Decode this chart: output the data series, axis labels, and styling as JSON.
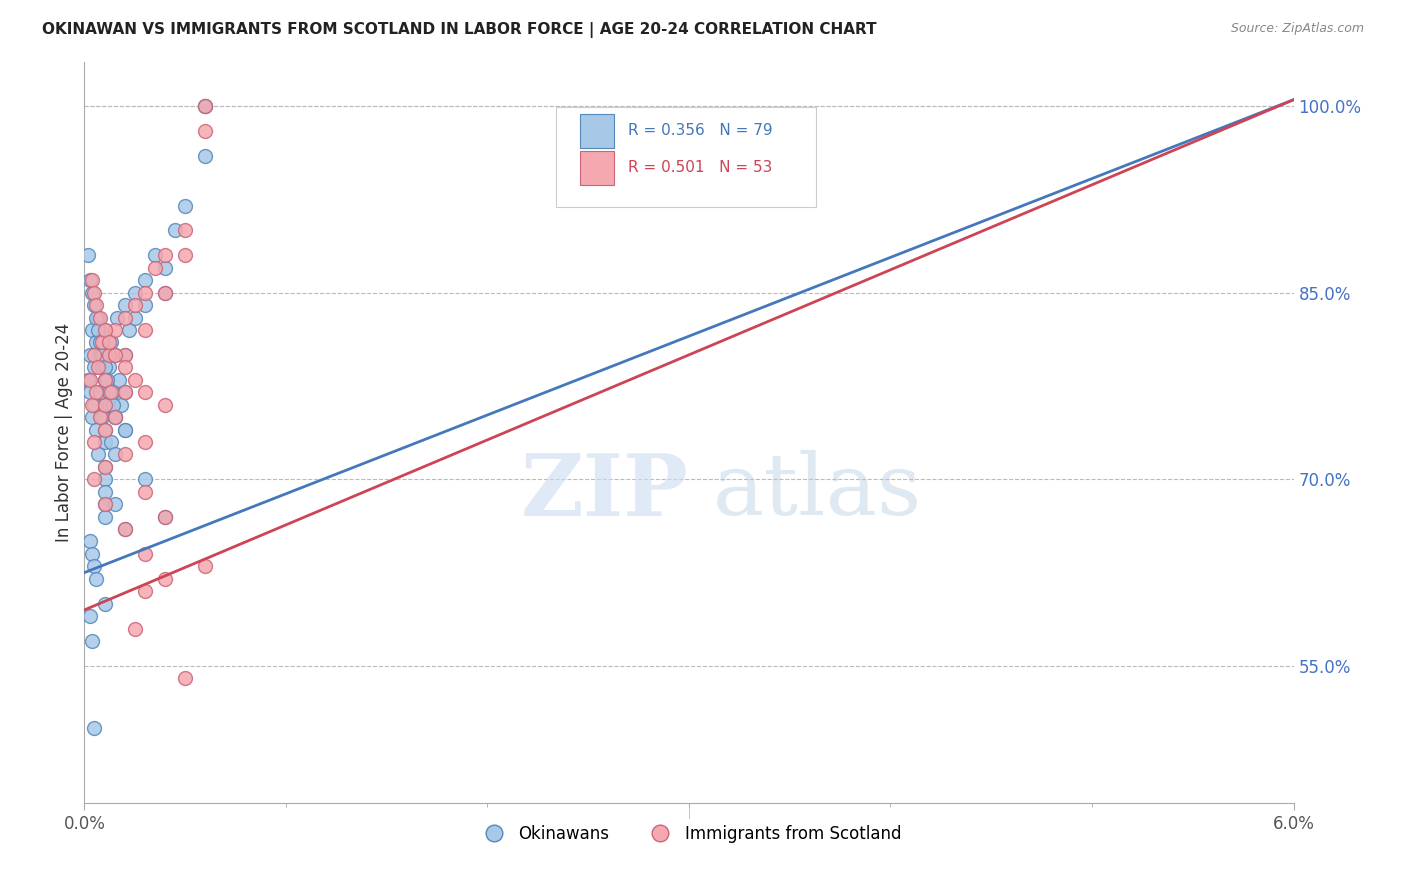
{
  "title": "OKINAWAN VS IMMIGRANTS FROM SCOTLAND IN LABOR FORCE | AGE 20-24 CORRELATION CHART",
  "source": "Source: ZipAtlas.com",
  "ylabel": "In Labor Force | Age 20-24",
  "x_min": 0.0,
  "x_max": 0.06,
  "y_min": 0.44,
  "y_max": 1.035,
  "yticks": [
    0.55,
    0.7,
    0.85,
    1.0
  ],
  "ytick_labels": [
    "55.0%",
    "70.0%",
    "85.0%",
    "100.0%"
  ],
  "xtick_vals": [
    0.0,
    0.06
  ],
  "xtick_labels": [
    "0.0%",
    "6.0%"
  ],
  "blue_R": 0.356,
  "blue_N": 79,
  "pink_R": 0.501,
  "pink_N": 53,
  "blue_color": "#a8c8e8",
  "pink_color": "#f4a8b0",
  "blue_edge_color": "#5588bb",
  "pink_edge_color": "#cc6677",
  "blue_line_color": "#4477bb",
  "pink_line_color": "#cc4455",
  "legend_blue_label": "Okinawans",
  "legend_pink_label": "Immigrants from Scotland",
  "blue_line_x0": 0.0,
  "blue_line_y0": 0.625,
  "blue_line_x1": 0.06,
  "blue_line_y1": 1.005,
  "pink_line_x0": 0.0,
  "pink_line_y0": 0.595,
  "pink_line_x1": 0.06,
  "pink_line_y1": 1.005,
  "blue_x": [
    0.0002,
    0.0003,
    0.0003,
    0.0004,
    0.0004,
    0.0005,
    0.0005,
    0.0006,
    0.0006,
    0.0007,
    0.0007,
    0.0008,
    0.0008,
    0.0009,
    0.0009,
    0.001,
    0.001,
    0.001,
    0.001,
    0.001,
    0.001,
    0.001,
    0.001,
    0.0012,
    0.0012,
    0.0013,
    0.0013,
    0.0014,
    0.0015,
    0.0015,
    0.0015,
    0.0016,
    0.0017,
    0.0018,
    0.002,
    0.002,
    0.002,
    0.002,
    0.0022,
    0.0025,
    0.0025,
    0.003,
    0.003,
    0.0035,
    0.004,
    0.004,
    0.0045,
    0.005,
    0.006,
    0.0002,
    0.0003,
    0.0004,
    0.0005,
    0.0006,
    0.0007,
    0.0008,
    0.0009,
    0.001,
    0.0011,
    0.0012,
    0.0014,
    0.0015,
    0.002,
    0.0003,
    0.0004,
    0.0005,
    0.0006,
    0.001,
    0.0015,
    0.0003,
    0.0004,
    0.0005,
    0.001,
    0.001,
    0.002,
    0.003,
    0.004,
    0.006,
    0.006
  ],
  "blue_y": [
    0.78,
    0.8,
    0.77,
    0.82,
    0.75,
    0.79,
    0.76,
    0.81,
    0.74,
    0.83,
    0.72,
    0.8,
    0.77,
    0.79,
    0.75,
    0.82,
    0.78,
    0.76,
    0.74,
    0.73,
    0.71,
    0.7,
    0.68,
    0.79,
    0.76,
    0.81,
    0.73,
    0.77,
    0.8,
    0.75,
    0.72,
    0.83,
    0.78,
    0.76,
    0.84,
    0.8,
    0.77,
    0.74,
    0.82,
    0.85,
    0.83,
    0.86,
    0.84,
    0.88,
    0.87,
    0.85,
    0.9,
    0.92,
    0.96,
    0.88,
    0.86,
    0.85,
    0.84,
    0.83,
    0.82,
    0.81,
    0.8,
    0.79,
    0.78,
    0.77,
    0.76,
    0.75,
    0.74,
    0.65,
    0.64,
    0.63,
    0.62,
    0.67,
    0.68,
    0.59,
    0.57,
    0.5,
    0.69,
    0.6,
    0.66,
    0.7,
    0.67,
    1.0,
    1.0
  ],
  "pink_x": [
    0.0003,
    0.0004,
    0.0005,
    0.0005,
    0.0006,
    0.0007,
    0.0008,
    0.0009,
    0.001,
    0.001,
    0.001,
    0.0012,
    0.0013,
    0.0015,
    0.0015,
    0.002,
    0.002,
    0.002,
    0.0025,
    0.003,
    0.003,
    0.0035,
    0.004,
    0.004,
    0.005,
    0.005,
    0.006,
    0.006,
    0.0004,
    0.0005,
    0.0006,
    0.0008,
    0.001,
    0.0012,
    0.0015,
    0.002,
    0.0025,
    0.003,
    0.004,
    0.0005,
    0.001,
    0.002,
    0.003,
    0.004,
    0.001,
    0.002,
    0.003,
    0.003,
    0.004,
    0.0025,
    0.003,
    0.005,
    0.006
  ],
  "pink_y": [
    0.78,
    0.76,
    0.8,
    0.73,
    0.77,
    0.79,
    0.75,
    0.81,
    0.78,
    0.76,
    0.74,
    0.8,
    0.77,
    0.82,
    0.75,
    0.83,
    0.8,
    0.77,
    0.84,
    0.85,
    0.82,
    0.87,
    0.88,
    0.85,
    0.9,
    0.88,
    0.98,
    1.0,
    0.86,
    0.85,
    0.84,
    0.83,
    0.82,
    0.81,
    0.8,
    0.79,
    0.78,
    0.77,
    0.76,
    0.7,
    0.68,
    0.66,
    0.64,
    0.62,
    0.71,
    0.72,
    0.73,
    0.69,
    0.67,
    0.58,
    0.61,
    0.54,
    0.63
  ]
}
